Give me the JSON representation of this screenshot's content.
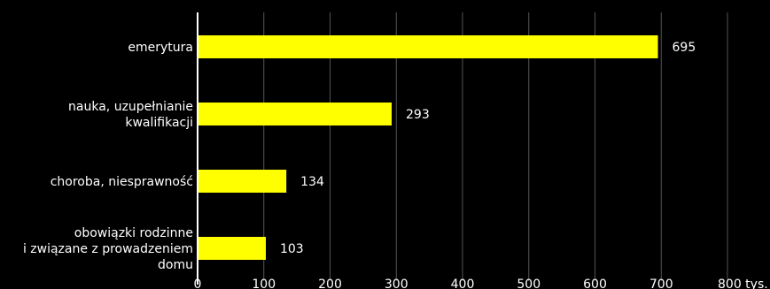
{
  "chart_data": {
    "type": "bar",
    "orientation": "horizontal",
    "categories": [
      [
        "emerytura"
      ],
      [
        "nauka, uzupełnianie",
        "kwalifikacji"
      ],
      [
        "choroba, niesprawność"
      ],
      [
        "obowiązki rodzinne",
        "i związane z prowadzeniem",
        "domu"
      ]
    ],
    "values": [
      695,
      293,
      134,
      103
    ],
    "data_labels": [
      "695",
      "293",
      "134",
      "103"
    ],
    "x_ticks": [
      "0",
      "100",
      "200",
      "300",
      "400",
      "500",
      "600",
      "700",
      "800 tys."
    ],
    "xlim": [
      0,
      800
    ],
    "grid": true,
    "title": "",
    "xlabel": "",
    "ylabel": "",
    "colors": {
      "bar": "#ffff00",
      "background": "#000000",
      "text": "#ffffff",
      "grid": "#555555"
    }
  }
}
